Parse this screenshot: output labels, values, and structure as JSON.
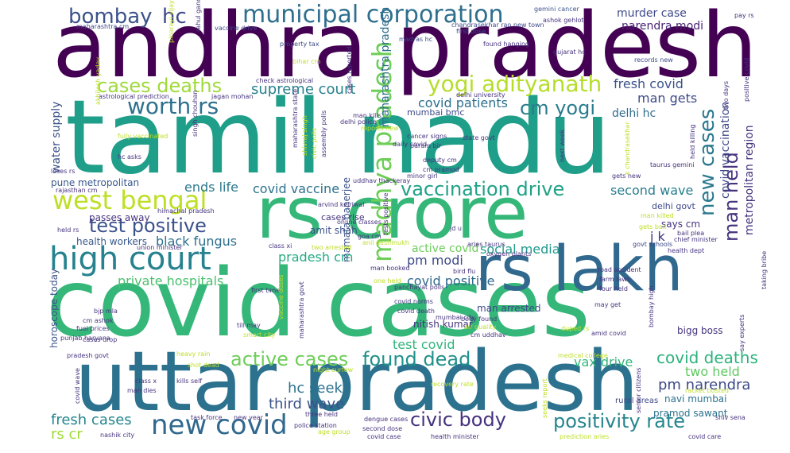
{
  "words": [
    {
      "text": "andhra pradesh",
      "color": "#440154"
    },
    {
      "text": "tamil nadu",
      "color": "#1f9e89"
    },
    {
      "text": "covid cases",
      "color": "#35b779"
    },
    {
      "text": "uttar pradesh",
      "color": "#2c728e"
    },
    {
      "text": "rs crore",
      "color": "#35b779"
    },
    {
      "text": "rs lakh",
      "color": "#31688e"
    },
    {
      "text": "high court",
      "color": "#26828e"
    },
    {
      "text": "new covid",
      "color": "#31688e"
    },
    {
      "text": "west bengal",
      "color": "#bddf26"
    },
    {
      "text": "madhya pradesh",
      "color": "#6ece58"
    },
    {
      "text": "yogi adityanath",
      "color": "#b5de2b"
    },
    {
      "text": "worth rs",
      "color": "#2d708e"
    },
    {
      "text": "municipal corporation",
      "color": "#2e6f8e"
    },
    {
      "text": "bombay",
      "color": "#3b528b"
    },
    {
      "text": "hc",
      "color": "#3e4989"
    },
    {
      "text": "cases deaths",
      "color": "#9fda3a"
    },
    {
      "text": "vaccination drive",
      "color": "#1fa187"
    },
    {
      "text": "test positive",
      "color": "#3b528b"
    },
    {
      "text": "active cases",
      "color": "#6ece58"
    },
    {
      "text": "found dead",
      "color": "#21918c"
    },
    {
      "text": "positivity rate",
      "color": "#25858e"
    },
    {
      "text": "civic body",
      "color": "#46327e"
    },
    {
      "text": "new cases",
      "color": "#2a788e"
    },
    {
      "text": "man held",
      "color": "#46337e"
    },
    {
      "text": "cm yogi",
      "color": "#287c8e"
    },
    {
      "text": "covid deaths",
      "color": "#2db27d"
    },
    {
      "text": "pm narendra",
      "color": "#3e4a89"
    },
    {
      "text": "supreme court",
      "color": "#26818e"
    },
    {
      "text": "third wave",
      "color": "#3b528b"
    },
    {
      "text": "hc seeks",
      "color": "#2c728e"
    },
    {
      "text": "fresh cases",
      "color": "#25858e"
    },
    {
      "text": "rs cr",
      "color": "#a0da39"
    },
    {
      "text": "ends life",
      "color": "#2a788e"
    },
    {
      "text": "covid vaccine",
      "color": "#2c728e"
    },
    {
      "text": "black fungus",
      "color": "#2d708e"
    },
    {
      "text": "private hospitals",
      "color": "#4ac16d"
    },
    {
      "text": "covid positive",
      "color": "#31688e"
    },
    {
      "text": "pradesh cm",
      "color": "#25ab82"
    },
    {
      "text": "pm modi",
      "color": "#3e4989"
    },
    {
      "text": "active covid",
      "color": "#6ccd5a"
    },
    {
      "text": "social media",
      "color": "#1f9a8a"
    },
    {
      "text": "covid patients",
      "color": "#2d708e"
    },
    {
      "text": "vax drive",
      "color": "#31b57b"
    },
    {
      "text": "test covid",
      "color": "#31b57b"
    },
    {
      "text": "two held",
      "color": "#5ec962"
    },
    {
      "text": "second wave",
      "color": "#287d8e"
    },
    {
      "text": "fresh covid",
      "color": "#3b528b"
    },
    {
      "text": "man gets",
      "color": "#3e4a89"
    },
    {
      "text": "delhi hc",
      "color": "#2e6e8e"
    },
    {
      "text": "narendra modi",
      "color": "#482475"
    },
    {
      "text": "murder case",
      "color": "#3e4989"
    },
    {
      "text": "maharashtra pradesh",
      "color": "#2e6e8e"
    },
    {
      "text": "covid vaccination",
      "color": "#3e4989"
    },
    {
      "text": "metropolitan region",
      "color": "#46337e"
    },
    {
      "text": "amit shah",
      "color": "#3b528b"
    },
    {
      "text": "j k",
      "color": "#46337e"
    },
    {
      "text": "water supply",
      "color": "#3b528b"
    },
    {
      "text": "pune metropolitan",
      "color": "#38588c"
    },
    {
      "text": "health workers",
      "color": "#38598c"
    },
    {
      "text": "passes away",
      "color": "#46337e"
    },
    {
      "text": "horoscope today",
      "color": "#3b528b"
    },
    {
      "text": "bigg boss",
      "color": "#46337e"
    },
    {
      "text": "man arrested",
      "color": "#3e4989"
    },
    {
      "text": "navi mumbai",
      "color": "#2c728e"
    },
    {
      "text": "says cm",
      "color": "#46337e"
    },
    {
      "text": "cases rise",
      "color": "#46337e"
    },
    {
      "text": "delhi govt",
      "color": "#3e4989"
    },
    {
      "text": "mumbai bmc",
      "color": "#3e4989"
    },
    {
      "text": "nitish kumar",
      "color": "#46337e"
    },
    {
      "text": "mamata banerjee",
      "color": "#3b528b"
    },
    {
      "text": "pramod sawant",
      "color": "#2c728e"
    },
    {
      "text": "rural areas",
      "color": "#3e4a89"
    },
    {
      "text": "man killed",
      "color": "#bddf26"
    },
    {
      "text": "chief minister",
      "color": "#46337e"
    },
    {
      "text": "govt schools",
      "color": "#3e4989"
    },
    {
      "text": "maharashtra cm",
      "color": "#3e4989"
    },
    {
      "text": "ashok gehlot",
      "color": "#46337e"
    },
    {
      "text": "gemini cancer",
      "color": "#3b528b"
    },
    {
      "text": "pay rs",
      "color": "#46337e"
    },
    {
      "text": "first dose",
      "color": "#3e4989"
    },
    {
      "text": "chandrasekhar rao new town",
      "color": "#3e4989"
    },
    {
      "text": "madras hc",
      "color": "#3e4989"
    },
    {
      "text": "records new",
      "color": "#3e4989"
    },
    {
      "text": "vaccine drive",
      "color": "#3e4989"
    },
    {
      "text": "property tax",
      "color": "#3e4989"
    },
    {
      "text": "bihar cm",
      "color": "#bddf26"
    },
    {
      "text": "found hanging",
      "color": "#46337e"
    },
    {
      "text": "rahul gandhi",
      "color": "#46337e"
    },
    {
      "text": "pinarayi vijayan",
      "color": "#bddf26"
    },
    {
      "text": "astrological prediction",
      "color": "#46337e"
    },
    {
      "text": "check astrological",
      "color": "#46337e"
    },
    {
      "text": "jagan mohan",
      "color": "#46337e"
    },
    {
      "text": "akhilesh yadav",
      "color": "#bddf26"
    },
    {
      "text": "fully vaccinated",
      "color": "#bddf26"
    },
    {
      "text": "singh chouhan",
      "color": "#46337e"
    },
    {
      "text": "hc asks",
      "color": "#46337e"
    },
    {
      "text": "loses rs",
      "color": "#46337e"
    },
    {
      "text": "rajasthan cm",
      "color": "#46337e"
    },
    {
      "text": "himachal pradesh",
      "color": "#46337e"
    },
    {
      "text": "arvind kejriwal",
      "color": "#46337e"
    },
    {
      "text": "online classes",
      "color": "#46337e"
    },
    {
      "text": "held rs",
      "color": "#46337e"
    },
    {
      "text": "union minister",
      "color": "#46337e"
    },
    {
      "text": "class xi",
      "color": "#46337e"
    },
    {
      "text": "two arrested",
      "color": "#bddf26"
    },
    {
      "text": "goa cm",
      "color": "#46337e"
    },
    {
      "text": "anil deshmukh",
      "color": "#bddf26"
    },
    {
      "text": "jd u",
      "color": "#46337e"
    },
    {
      "text": "aries taurus",
      "color": "#46337e"
    },
    {
      "text": "oxygen plants",
      "color": "#46337e"
    },
    {
      "text": "bail plea",
      "color": "#46337e"
    },
    {
      "text": "gets bail",
      "color": "#bddf26"
    },
    {
      "text": "road accident",
      "color": "#46337e"
    },
    {
      "text": "farm laws",
      "color": "#46337e"
    },
    {
      "text": "four held",
      "color": "#46337e"
    },
    {
      "text": "may get",
      "color": "#46337e"
    },
    {
      "text": "man booked",
      "color": "#46337e"
    },
    {
      "text": "one held",
      "color": "#bddf26"
    },
    {
      "text": "bird flu",
      "color": "#46337e"
    },
    {
      "text": "panchayat polls",
      "color": "#46337e"
    },
    {
      "text": "covid norms",
      "color": "#46337e"
    },
    {
      "text": "covid death",
      "color": "#46337e"
    },
    {
      "text": "mumbai city",
      "color": "#46337e"
    },
    {
      "text": "body found",
      "color": "#46337e"
    },
    {
      "text": "air quality",
      "color": "#bddf26"
    },
    {
      "text": "duped rs",
      "color": "#bddf26"
    },
    {
      "text": "amid covid",
      "color": "#46337e"
    },
    {
      "text": "cm uddhav",
      "color": "#46337e"
    },
    {
      "text": "first time",
      "color": "#46337e"
    },
    {
      "text": "bjp mla",
      "color": "#46337e"
    },
    {
      "text": "cm ashok",
      "color": "#46337e"
    },
    {
      "text": "fuel prices",
      "color": "#46337e"
    },
    {
      "text": "punjab haryana",
      "color": "#46337e"
    },
    {
      "text": "cases drop",
      "color": "#46337e"
    },
    {
      "text": "pradesh govt",
      "color": "#46337e"
    },
    {
      "text": "till may",
      "color": "#46337e"
    },
    {
      "text": "smart city",
      "color": "#bddf26"
    },
    {
      "text": "heavy rain",
      "color": "#bddf26"
    },
    {
      "text": "shot dead",
      "color": "#bddf26"
    },
    {
      "text": "night curfew",
      "color": "#bddf26"
    },
    {
      "text": "kills self",
      "color": "#46337e"
    },
    {
      "text": "class x",
      "color": "#46337e"
    },
    {
      "text": "man dies",
      "color": "#46337e"
    },
    {
      "text": "covid wave",
      "color": "#46337e"
    },
    {
      "text": "task force",
      "color": "#46337e"
    },
    {
      "text": "new year",
      "color": "#46337e"
    },
    {
      "text": "nashik city",
      "color": "#46337e"
    },
    {
      "text": "police station",
      "color": "#46337e"
    },
    {
      "text": "three held",
      "color": "#46337e"
    },
    {
      "text": "age group",
      "color": "#bddf26"
    },
    {
      "text": "second dose",
      "color": "#46337e"
    },
    {
      "text": "dengue cases",
      "color": "#46337e"
    },
    {
      "text": "covid case",
      "color": "#46337e"
    },
    {
      "text": "health minister",
      "color": "#46337e"
    },
    {
      "text": "recovery rate",
      "color": "#bddf26"
    },
    {
      "text": "medical college",
      "color": "#bddf26"
    },
    {
      "text": "prediction aries",
      "color": "#bddf26"
    },
    {
      "text": "covid care",
      "color": "#46337e"
    },
    {
      "text": "racket busted",
      "color": "#bddf26"
    },
    {
      "text": "shiv sena",
      "color": "#46337e"
    },
    {
      "text": "seeks report",
      "color": "#bddf26"
    },
    {
      "text": "senior citizens",
      "color": "#46337e"
    },
    {
      "text": "bombay high",
      "color": "#46337e"
    },
    {
      "text": "say experts",
      "color": "#46337e"
    },
    {
      "text": "taking bribe",
      "color": "#46337e"
    },
    {
      "text": "gujarat hc",
      "color": "#46337e"
    },
    {
      "text": "man kills",
      "color": "#46337e"
    },
    {
      "text": "delhi police",
      "color": "#46337e"
    },
    {
      "text": "reports new",
      "color": "#bddf26"
    },
    {
      "text": "cancer signs",
      "color": "#46337e"
    },
    {
      "text": "param bir",
      "color": "#46337e"
    },
    {
      "text": "daily covid",
      "color": "#46337e"
    },
    {
      "text": "state govt",
      "color": "#46337e"
    },
    {
      "text": "deputy cm",
      "color": "#46337e"
    },
    {
      "text": "cm pramod",
      "color": "#46337e"
    },
    {
      "text": "minor girl",
      "color": "#46337e"
    },
    {
      "text": "taurus gemini",
      "color": "#46337e"
    },
    {
      "text": "gets new",
      "color": "#46337e"
    },
    {
      "text": "uddhav thackeray",
      "color": "#46337e"
    },
    {
      "text": "health dept",
      "color": "#46337e"
    },
    {
      "text": "two days",
      "color": "#46337e"
    },
    {
      "text": "positive covid",
      "color": "#46337e"
    },
    {
      "text": "held killing",
      "color": "#46337e"
    },
    {
      "text": "k chandrasekhar",
      "color": "#bddf26"
    },
    {
      "text": "next week",
      "color": "#46337e"
    },
    {
      "text": "delhi university",
      "color": "#46337e"
    },
    {
      "text": "maharashtra state",
      "color": "#46337e"
    },
    {
      "text": "shivraj singh",
      "color": "#bddf26"
    },
    {
      "text": "civic polls",
      "color": "#bddf26"
    },
    {
      "text": "assembly polls",
      "color": "#46337e"
    },
    {
      "text": "tests positive",
      "color": "#46337e"
    },
    {
      "text": "vaccine doses",
      "color": "#bddf26"
    },
    {
      "text": "maharashtra govt",
      "color": "#46337e"
    },
    {
      "text": "cases reported",
      "color": "#46337e"
    }
  ]
}
